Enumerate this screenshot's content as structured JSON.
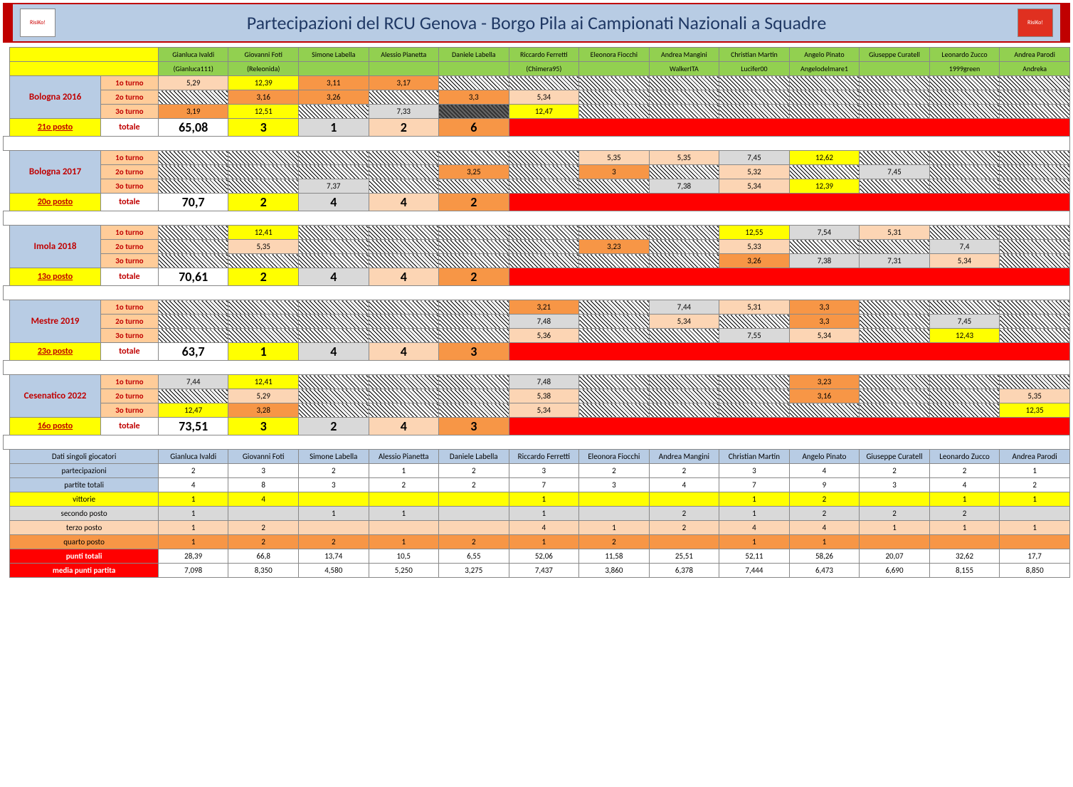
{
  "title": "Partecipazioni del RCU Genova - Borgo Pila ai Campionati Nazionali a Squadre",
  "logos": {
    "left": "RisiKo!",
    "right": "RisiKo!"
  },
  "players": [
    {
      "name": "Gianluca Ivaldi",
      "nick": "(Gianluca111)"
    },
    {
      "name": "Giovanni Foti",
      "nick": "(Releonida)"
    },
    {
      "name": "Simone Labella",
      "nick": ""
    },
    {
      "name": "Alessio Pianetta",
      "nick": ""
    },
    {
      "name": "Daniele Labella",
      "nick": ""
    },
    {
      "name": "Riccardo Ferretti",
      "nick": "(Chimera95)"
    },
    {
      "name": "Eleonora Fiocchi",
      "nick": ""
    },
    {
      "name": "Andrea Mangini",
      "nick": "WalkerITA"
    },
    {
      "name": "Christian Martin",
      "nick": "Lucifer00"
    },
    {
      "name": "Angelo Pinato",
      "nick": "Angelodelmare1"
    },
    {
      "name": "Giuseppe Curatell",
      "nick": ""
    },
    {
      "name": "Leonardo Zucco",
      "nick": "1999green"
    },
    {
      "name": "Andrea Parodi",
      "nick": "Andreka"
    }
  ],
  "turno_labels": [
    "1o turno",
    "2o turno",
    "3o turno"
  ],
  "totale_label": "totale",
  "blocks": [
    {
      "year": "Bologna 2016",
      "posto": "21o posto",
      "total": "65,08",
      "pos_totals": [
        "3",
        "1",
        "2",
        "6"
      ],
      "pos_colors": [
        "yellow",
        "gray",
        "pink",
        "orange"
      ],
      "rows": [
        [
          {
            "v": "5,29",
            "c": "pink"
          },
          {
            "v": "12,39",
            "c": "yellow"
          },
          {
            "v": "3,11",
            "c": "orange"
          },
          {
            "v": "3,17",
            "c": "orange"
          },
          {
            "c": "hatch"
          },
          {
            "c": "hatch"
          },
          {
            "c": "hatch"
          },
          {
            "c": "hatch"
          },
          {
            "c": "hatch"
          },
          {
            "c": "hatch"
          },
          {
            "c": "hatch"
          },
          {
            "c": "hatch"
          },
          {
            "c": "hatch"
          }
        ],
        [
          {
            "c": "hatch"
          },
          {
            "v": "3,16",
            "c": "orange"
          },
          {
            "v": "3,26",
            "c": "orange"
          },
          {
            "c": "hatch"
          },
          {
            "v": "3,3",
            "c": "orange"
          },
          {
            "v": "5,34",
            "c": "pink"
          },
          {
            "c": "hatch"
          },
          {
            "c": "hatch"
          },
          {
            "c": "hatch"
          },
          {
            "c": "hatch"
          },
          {
            "c": "hatch"
          },
          {
            "c": "hatch"
          },
          {
            "c": "hatch"
          }
        ],
        [
          {
            "v": "3,19",
            "c": "orange"
          },
          {
            "v": "12,51",
            "c": "yellow"
          },
          {
            "c": "hatch"
          },
          {
            "v": "7,33",
            "c": "gray"
          },
          {
            "c": "hatch2"
          },
          {
            "v": "12,47",
            "c": "yellow"
          },
          {
            "c": "hatch"
          },
          {
            "c": "hatch"
          },
          {
            "c": "hatch"
          },
          {
            "c": "hatch"
          },
          {
            "c": "hatch"
          },
          {
            "c": "hatch"
          },
          {
            "c": "hatch"
          }
        ]
      ]
    },
    {
      "year": "Bologna 2017",
      "posto": "20o posto",
      "total": "70,7",
      "pos_totals": [
        "2",
        "4",
        "4",
        "2"
      ],
      "pos_colors": [
        "yellow",
        "gray",
        "pink",
        "orange"
      ],
      "rows": [
        [
          {
            "c": "hatch"
          },
          {
            "c": "hatch"
          },
          {
            "c": "hatch"
          },
          {
            "c": "hatch"
          },
          {
            "c": "hatch"
          },
          {
            "c": "hatch"
          },
          {
            "v": "5,35",
            "c": "pink"
          },
          {
            "v": "5,35",
            "c": "pink"
          },
          {
            "v": "7,45",
            "c": "gray"
          },
          {
            "v": "12,62",
            "c": "yellow"
          },
          {
            "c": "hatch"
          },
          {
            "c": "hatch"
          },
          {
            "c": "hatch"
          }
        ],
        [
          {
            "c": "hatch"
          },
          {
            "c": "hatch"
          },
          {
            "c": "hatch"
          },
          {
            "c": "hatch"
          },
          {
            "v": "3,25",
            "c": "orange"
          },
          {
            "c": "hatch"
          },
          {
            "v": "3",
            "c": "orange"
          },
          {
            "c": "hatch"
          },
          {
            "v": "5,32",
            "c": "pink"
          },
          {
            "c": "hatch"
          },
          {
            "v": "7,45",
            "c": "gray"
          },
          {
            "c": "hatch"
          },
          {
            "c": "hatch"
          }
        ],
        [
          {
            "c": "hatch"
          },
          {
            "c": "hatch"
          },
          {
            "v": "7,37",
            "c": "gray"
          },
          {
            "c": "hatch"
          },
          {
            "c": "hatch"
          },
          {
            "c": "hatch"
          },
          {
            "c": "hatch"
          },
          {
            "v": "7,38",
            "c": "gray"
          },
          {
            "v": "5,34",
            "c": "pink"
          },
          {
            "v": "12,39",
            "c": "yellow"
          },
          {
            "c": "hatch"
          },
          {
            "c": "hatch"
          },
          {
            "c": "hatch"
          }
        ]
      ]
    },
    {
      "year": "Imola 2018",
      "posto": "13o posto",
      "total": "70,61",
      "pos_totals": [
        "2",
        "4",
        "4",
        "2"
      ],
      "pos_colors": [
        "yellow",
        "gray",
        "pink",
        "orange"
      ],
      "rows": [
        [
          {
            "c": "hatch"
          },
          {
            "v": "12,41",
            "c": "yellow"
          },
          {
            "c": "hatch"
          },
          {
            "c": "hatch"
          },
          {
            "c": "hatch"
          },
          {
            "c": "hatch"
          },
          {
            "c": "hatch"
          },
          {
            "c": "hatch"
          },
          {
            "v": "12,55",
            "c": "yellow"
          },
          {
            "v": "7,54",
            "c": "gray"
          },
          {
            "v": "5,31",
            "c": "pink"
          },
          {
            "c": "hatch"
          },
          {
            "c": "hatch"
          }
        ],
        [
          {
            "c": "hatch"
          },
          {
            "v": "5,35",
            "c": "pink"
          },
          {
            "c": "hatch"
          },
          {
            "c": "hatch"
          },
          {
            "c": "hatch"
          },
          {
            "c": "hatch"
          },
          {
            "v": "3,23",
            "c": "orange"
          },
          {
            "c": "hatch"
          },
          {
            "v": "5,33",
            "c": "pink"
          },
          {
            "c": "hatch"
          },
          {
            "c": "hatch"
          },
          {
            "v": "7,4",
            "c": "gray"
          },
          {
            "c": "hatch"
          }
        ],
        [
          {
            "c": "hatch"
          },
          {
            "c": "hatch"
          },
          {
            "c": "hatch"
          },
          {
            "c": "hatch"
          },
          {
            "c": "hatch"
          },
          {
            "c": "hatch"
          },
          {
            "c": "hatch"
          },
          {
            "c": "hatch"
          },
          {
            "v": "3,26",
            "c": "orange"
          },
          {
            "v": "7,38",
            "c": "gray"
          },
          {
            "v": "7,31",
            "c": "gray"
          },
          {
            "v": "5,34",
            "c": "pink"
          },
          {
            "c": "hatch"
          }
        ]
      ]
    },
    {
      "year": "Mestre 2019",
      "posto": "23o posto",
      "total": "63,7",
      "pos_totals": [
        "1",
        "4",
        "4",
        "3"
      ],
      "pos_colors": [
        "yellow",
        "gray",
        "pink",
        "orange"
      ],
      "rows": [
        [
          {
            "c": "hatch"
          },
          {
            "c": "hatch"
          },
          {
            "c": "hatch"
          },
          {
            "c": "hatch"
          },
          {
            "c": "hatch"
          },
          {
            "v": "3,21",
            "c": "orange"
          },
          {
            "c": "hatch"
          },
          {
            "v": "7,44",
            "c": "gray"
          },
          {
            "v": "5,31",
            "c": "pink"
          },
          {
            "v": "3,3",
            "c": "orange"
          },
          {
            "c": "hatch"
          },
          {
            "c": "hatch"
          },
          {
            "c": "hatch"
          }
        ],
        [
          {
            "c": "hatch"
          },
          {
            "c": "hatch"
          },
          {
            "c": "hatch"
          },
          {
            "c": "hatch"
          },
          {
            "c": "hatch"
          },
          {
            "v": "7,48",
            "c": "gray"
          },
          {
            "c": "hatch"
          },
          {
            "v": "5,34",
            "c": "pink"
          },
          {
            "c": "hatch"
          },
          {
            "v": "3,3",
            "c": "orange"
          },
          {
            "c": "hatch"
          },
          {
            "v": "7,45",
            "c": "gray"
          },
          {
            "c": "hatch"
          }
        ],
        [
          {
            "c": "hatch"
          },
          {
            "c": "hatch"
          },
          {
            "c": "hatch"
          },
          {
            "c": "hatch"
          },
          {
            "c": "hatch"
          },
          {
            "v": "5,36",
            "c": "pink"
          },
          {
            "c": "hatch"
          },
          {
            "c": "hatch"
          },
          {
            "v": "7,55",
            "c": "gray"
          },
          {
            "v": "5,34",
            "c": "pink"
          },
          {
            "c": "hatch"
          },
          {
            "v": "12,43",
            "c": "yellow"
          },
          {
            "c": "hatch"
          }
        ]
      ]
    },
    {
      "year": "Cesenatico 2022",
      "posto": "16o posto",
      "total": "73,51",
      "pos_totals": [
        "3",
        "2",
        "4",
        "3"
      ],
      "pos_colors": [
        "yellow",
        "gray",
        "pink",
        "orange"
      ],
      "rows": [
        [
          {
            "v": "7,44",
            "c": "gray"
          },
          {
            "v": "12,41",
            "c": "yellow"
          },
          {
            "c": "hatch"
          },
          {
            "c": "hatch"
          },
          {
            "c": "hatch"
          },
          {
            "v": "7,48",
            "c": "gray"
          },
          {
            "c": "hatch"
          },
          {
            "c": "hatch"
          },
          {
            "c": "hatch"
          },
          {
            "v": "3,23",
            "c": "orange"
          },
          {
            "c": "hatch"
          },
          {
            "c": "hatch"
          },
          {
            "c": "hatch"
          }
        ],
        [
          {
            "c": "hatch"
          },
          {
            "v": "5,29",
            "c": "pink"
          },
          {
            "c": "hatch"
          },
          {
            "c": "hatch"
          },
          {
            "c": "hatch"
          },
          {
            "v": "5,38",
            "c": "pink"
          },
          {
            "c": "hatch"
          },
          {
            "c": "hatch"
          },
          {
            "c": "hatch"
          },
          {
            "v": "3,16",
            "c": "orange"
          },
          {
            "c": "hatch"
          },
          {
            "c": "hatch"
          },
          {
            "v": "5,35",
            "c": "pink"
          }
        ],
        [
          {
            "v": "12,47",
            "c": "yellow"
          },
          {
            "v": "3,28",
            "c": "orange"
          },
          {
            "c": "hatch"
          },
          {
            "c": "hatch"
          },
          {
            "c": "hatch"
          },
          {
            "v": "5,34",
            "c": "pink"
          },
          {
            "c": "hatch"
          },
          {
            "c": "hatch"
          },
          {
            "c": "hatch"
          },
          {
            "c": "hatch"
          },
          {
            "c": "hatch"
          },
          {
            "c": "hatch"
          },
          {
            "v": "12,35",
            "c": "yellow"
          }
        ]
      ]
    }
  ],
  "stats": {
    "header": "Dati singoli giocatori",
    "rows": [
      {
        "label": "partecipazioni",
        "cls": "b",
        "vals": [
          "2",
          "3",
          "2",
          "1",
          "2",
          "3",
          "2",
          "2",
          "3",
          "4",
          "2",
          "2",
          "1"
        ]
      },
      {
        "label": "partite totali",
        "cls": "b",
        "vals": [
          "4",
          "8",
          "3",
          "2",
          "2",
          "7",
          "3",
          "4",
          "7",
          "9",
          "3",
          "4",
          "2"
        ]
      },
      {
        "label": "vittorie",
        "cls": "y",
        "vals": [
          "1",
          "4",
          "",
          "",
          "",
          "1",
          "",
          "",
          "1",
          "2",
          "",
          "1",
          "1"
        ]
      },
      {
        "label": "secondo posto",
        "cls": "g",
        "vals": [
          "1",
          "",
          "1",
          "1",
          "",
          "1",
          "",
          "2",
          "1",
          "2",
          "2",
          "2",
          ""
        ]
      },
      {
        "label": "terzo posto",
        "cls": "p",
        "vals": [
          "1",
          "2",
          "",
          "",
          "",
          "4",
          "1",
          "2",
          "4",
          "4",
          "1",
          "1",
          "1"
        ]
      },
      {
        "label": "quarto posto",
        "cls": "o",
        "vals": [
          "1",
          "2",
          "2",
          "1",
          "2",
          "1",
          "2",
          "",
          "1",
          "1",
          "",
          "",
          ""
        ]
      },
      {
        "label": "punti totali",
        "cls": "r",
        "vals": [
          "28,39",
          "66,8",
          "13,74",
          "10,5",
          "6,55",
          "52,06",
          "11,58",
          "25,51",
          "52,11",
          "58,26",
          "20,07",
          "32,62",
          "17,7"
        ]
      },
      {
        "label": "media punti partita",
        "cls": "r",
        "vals": [
          "7,098",
          "8,350",
          "4,580",
          "5,250",
          "3,275",
          "7,437",
          "3,860",
          "6,378",
          "7,444",
          "6,473",
          "6,690",
          "8,155",
          "8,850"
        ]
      }
    ]
  },
  "colors": {
    "yellow": "#ffff00",
    "gray": "#d9d9d9",
    "pink": "#fcd5b4",
    "orange": "#f79646"
  }
}
